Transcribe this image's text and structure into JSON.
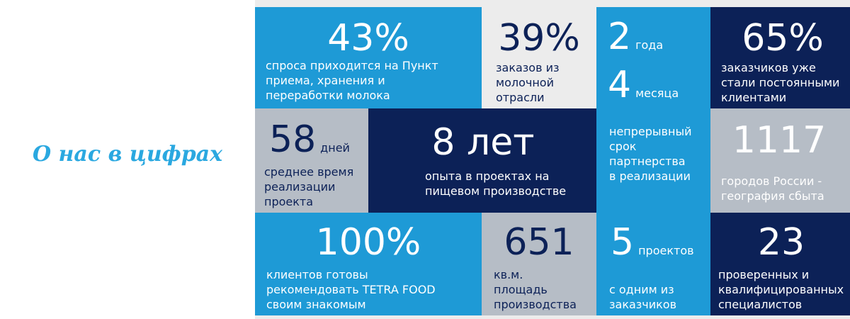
{
  "title": "О нас в цифрах",
  "tiles": [
    {
      "number": "43%",
      "text": [
        "спроса приходится на Пункт",
        "приема, хранения и",
        "переработки молока"
      ]
    },
    {
      "number": "39%",
      "text": [
        "заказов из",
        "молочной",
        "отрасли"
      ]
    },
    {
      "stats": [
        {
          "number": "2",
          "unit": "года"
        },
        {
          "number": "4",
          "unit": "месяца"
        }
      ],
      "text": [
        "непрерывный",
        "срок",
        "партнерства",
        "в реализации"
      ]
    },
    {
      "number": "65%",
      "text": [
        "заказчиков уже",
        "стали постоянными",
        "клиентами"
      ]
    },
    {
      "number": "58",
      "unit": "дней",
      "text": [
        "среднее время",
        "реализации",
        "проекта"
      ]
    },
    {
      "number": "8 лет",
      "text": [
        "опыта в проектах на",
        "пищевом производстве"
      ]
    },
    {
      "number": "1117",
      "text": [
        "городов России -",
        "география сбыта"
      ]
    },
    {
      "number": "100%",
      "text": [
        "клиентов готовы",
        "рекомендовать TETRA FOOD",
        "своим знакомым"
      ]
    },
    {
      "number": "651",
      "text": [
        "кв.м.",
        "площадь",
        "производства"
      ]
    },
    {
      "number": "5",
      "unit": "проектов",
      "text": [
        "с одним из",
        "заказчиков"
      ]
    },
    {
      "number": "23",
      "text": [
        "проверенных и",
        "квалифицированных",
        "специалистов"
      ]
    }
  ]
}
